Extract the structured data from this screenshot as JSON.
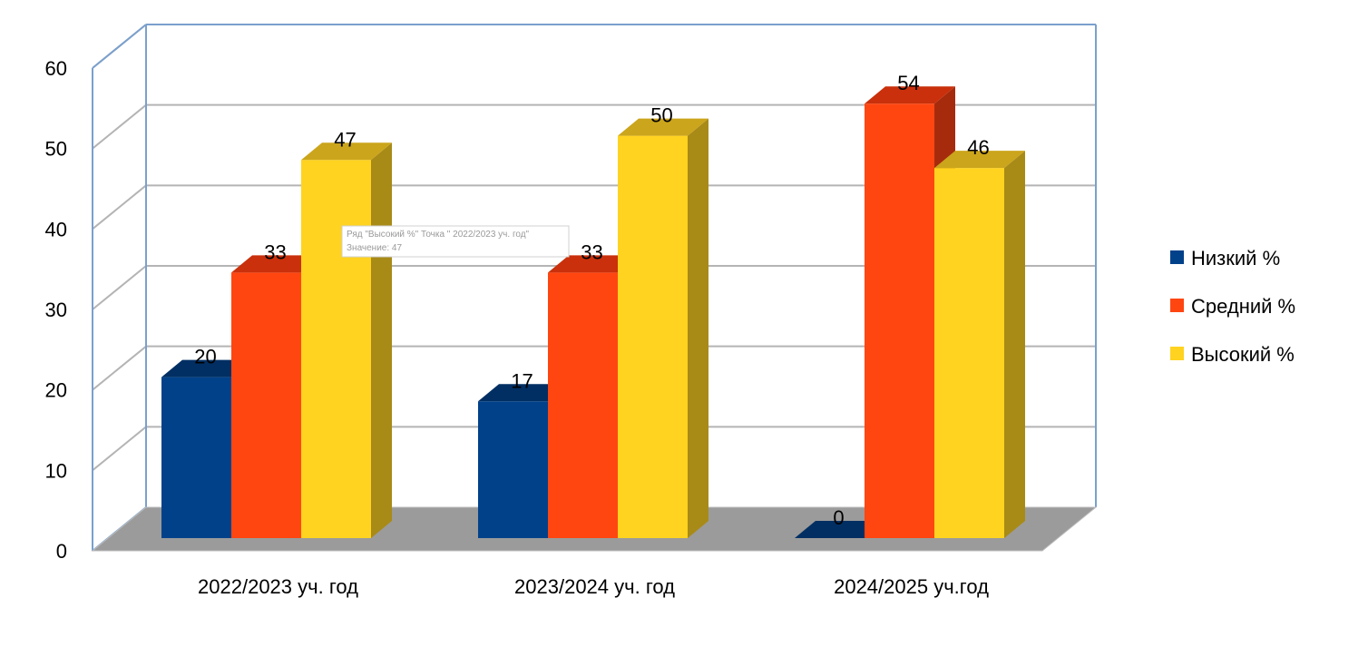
{
  "chart_data": {
    "type": "bar",
    "categories": [
      "2022/2023 уч. год",
      "2023/2024 уч. год",
      "2024/2025 уч.год"
    ],
    "series": [
      {
        "name": "Низкий %",
        "values": [
          20,
          17,
          0
        ],
        "color": "#00418A",
        "top_color": "#012F63",
        "side_color": "#003068"
      },
      {
        "name": "Средний %",
        "values": [
          33,
          33,
          54
        ],
        "color": "#FF4611",
        "top_color": "#C9300B",
        "side_color": "#A62B0D"
      },
      {
        "name": "Высокий %",
        "values": [
          47,
          50,
          46
        ],
        "color": "#FFD31F",
        "top_color": "#CBA51B",
        "side_color": "#A88A17"
      }
    ],
    "y_ticks": [
      "0",
      "10",
      "20",
      "30",
      "40",
      "50",
      "60"
    ],
    "ylim": [
      0,
      60
    ],
    "grid": true,
    "legend_position": "right",
    "style": "3d-clustered-column",
    "colors": {
      "wall_line": "#7BA0CD",
      "grid_line": "#B4B4B4",
      "floor": "#9B9B9B"
    }
  },
  "tooltip": {
    "line1": "Ряд \"Высокий %\" Точка \" 2022/2023 уч. год\"",
    "line2": "Значение: 47"
  }
}
